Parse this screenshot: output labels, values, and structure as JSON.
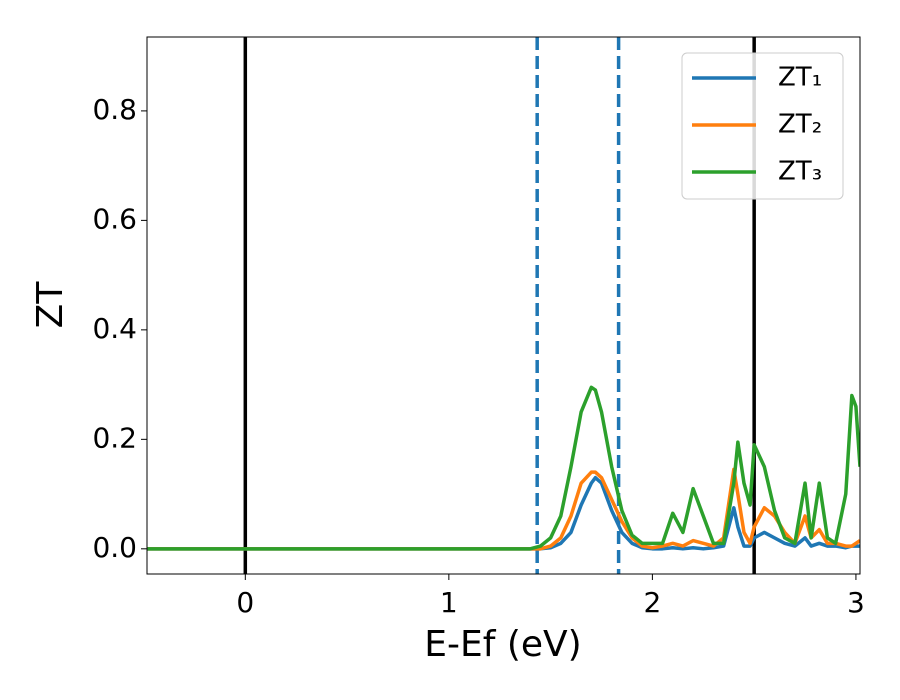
{
  "chart_data": {
    "type": "line",
    "xlabel": "E-Ef (eV)",
    "ylabel": "ZT",
    "xlim": [
      -0.483,
      3.02
    ],
    "ylim": [
      -0.046,
      0.935
    ],
    "xticks": [
      0,
      1,
      2,
      3
    ],
    "yticks": [
      {
        "value": 0,
        "label": "0.0"
      },
      0.2,
      0.4,
      0.6,
      0.8
    ],
    "legend": "upper right",
    "vlines": [
      {
        "x": 0,
        "color": "#000000",
        "style": "solid"
      },
      {
        "x": 2.5,
        "color": "#000000",
        "style": "solid"
      },
      {
        "x": 1.434,
        "color": "#1f77b4",
        "style": "dashed"
      },
      {
        "x": 1.834,
        "color": "#1f77b4",
        "style": "dashed"
      }
    ],
    "x": [
      -0.5,
      1.4,
      1.45,
      1.5,
      1.55,
      1.6,
      1.65,
      1.7,
      1.72,
      1.75,
      1.8,
      1.85,
      1.9,
      1.95,
      2.0,
      2.05,
      2.1,
      2.15,
      2.2,
      2.25,
      2.3,
      2.35,
      2.4,
      2.42,
      2.45,
      2.48,
      2.5,
      2.55,
      2.6,
      2.65,
      2.7,
      2.75,
      2.78,
      2.82,
      2.86,
      2.9,
      2.95,
      2.98,
      3.0,
      3.02
    ],
    "series": [
      {
        "name": "ZT₁",
        "color": "#1f77b4",
        "values": [
          0,
          0,
          0,
          0.002,
          0.01,
          0.03,
          0.08,
          0.12,
          0.13,
          0.12,
          0.07,
          0.03,
          0.01,
          0.002,
          0,
          0,
          0.002,
          0,
          0.002,
          0,
          0.002,
          0.005,
          0.075,
          0.04,
          0.005,
          0.005,
          0.02,
          0.03,
          0.02,
          0.01,
          0.005,
          0.02,
          0.005,
          0.01,
          0.005,
          0.005,
          0.002,
          0.005,
          0.005,
          0.005
        ]
      },
      {
        "name": "ZT₂",
        "color": "#ff7f0e",
        "values": [
          0,
          0,
          0,
          0.005,
          0.02,
          0.06,
          0.12,
          0.14,
          0.14,
          0.13,
          0.09,
          0.05,
          0.02,
          0.005,
          0.002,
          0.005,
          0.01,
          0.005,
          0.015,
          0.01,
          0.005,
          0.02,
          0.145,
          0.1,
          0.03,
          0.01,
          0.04,
          0.075,
          0.06,
          0.03,
          0.01,
          0.06,
          0.02,
          0.035,
          0.01,
          0.01,
          0.005,
          0.005,
          0.01,
          0.015
        ]
      },
      {
        "name": "ZT₃",
        "color": "#2ca02c",
        "values": [
          0,
          0,
          0.005,
          0.02,
          0.06,
          0.15,
          0.25,
          0.295,
          0.29,
          0.25,
          0.15,
          0.07,
          0.025,
          0.01,
          0.01,
          0.01,
          0.065,
          0.03,
          0.11,
          0.06,
          0.01,
          0.01,
          0.12,
          0.195,
          0.12,
          0.08,
          0.19,
          0.15,
          0.07,
          0.02,
          0.01,
          0.12,
          0.02,
          0.12,
          0.02,
          0.01,
          0.1,
          0.28,
          0.26,
          0.15
        ]
      }
    ]
  }
}
